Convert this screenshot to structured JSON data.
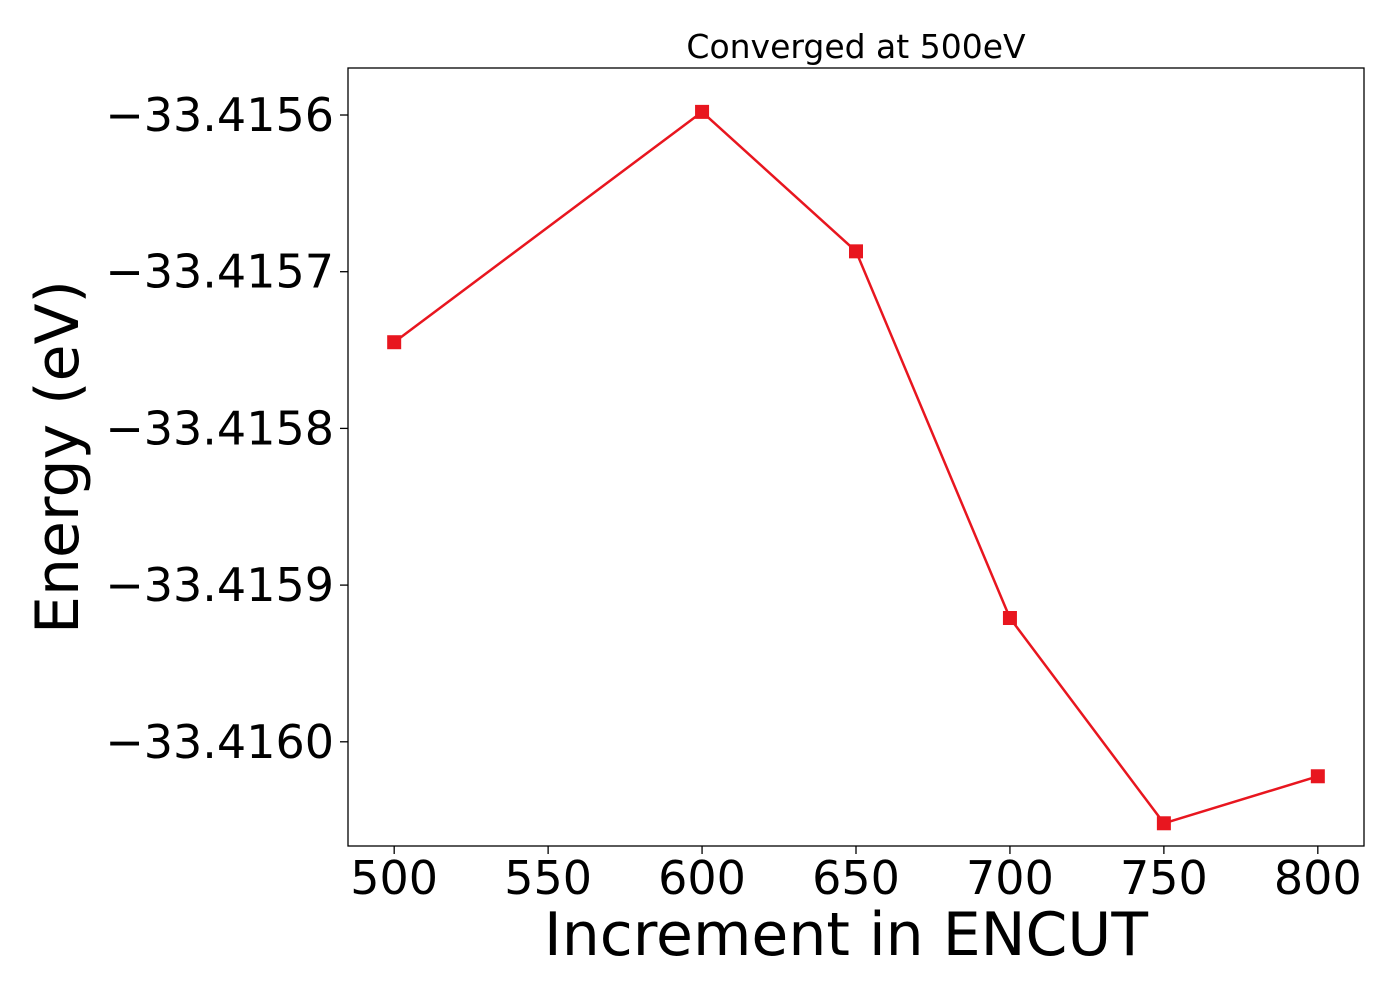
{
  "chart_data": {
    "type": "line",
    "title": "Converged at 500eV",
    "xlabel": "Increment in ENCUT",
    "ylabel": "Energy (eV)",
    "x": [
      500,
      600,
      650,
      700,
      750,
      800
    ],
    "series": [
      {
        "values": [
          -33.415745,
          -33.415598,
          -33.415687,
          -33.415921,
          -33.416052,
          -33.416022
        ],
        "color": "#e8161f",
        "marker": "square"
      }
    ],
    "xticks": [
      500,
      550,
      600,
      650,
      700,
      750,
      800
    ],
    "xtick_labels": [
      "500",
      "550",
      "600",
      "650",
      "700",
      "750",
      "800"
    ],
    "yticks": [
      -33.4156,
      -33.4157,
      -33.4158,
      -33.4159,
      -33.416
    ],
    "ytick_labels": [
      "−33.4156",
      "−33.4157",
      "−33.4158",
      "−33.4159",
      "−33.4160"
    ],
    "xlim": [
      485,
      815
    ],
    "ylim": [
      -33.4160665,
      -33.41557
    ],
    "grid": false,
    "legend": "none"
  }
}
